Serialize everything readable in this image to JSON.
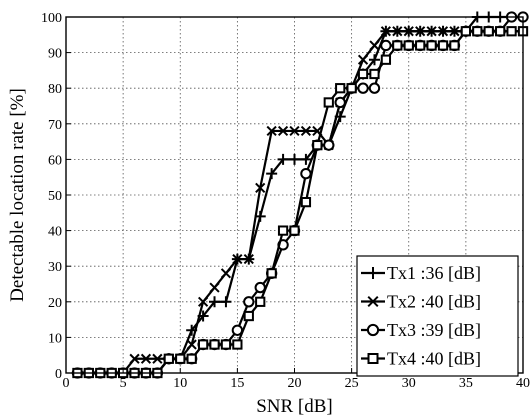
{
  "chart_data": {
    "type": "line",
    "title": "",
    "xlabel": "SNR [dB]",
    "ylabel": "Detectable location rate [%]",
    "xlim": [
      0,
      40
    ],
    "ylim": [
      0,
      100
    ],
    "xticks": [
      0,
      5,
      10,
      15,
      20,
      25,
      30,
      35,
      40
    ],
    "yticks": [
      0,
      10,
      20,
      30,
      40,
      50,
      60,
      70,
      80,
      90,
      100
    ],
    "grid": true,
    "legend_position": "bottom-right",
    "series": [
      {
        "name": "Tx1 :36 [dB]",
        "marker": "plus",
        "x": [
          1,
          2,
          3,
          4,
          5,
          6,
          7,
          8,
          9,
          10,
          11,
          12,
          13,
          14,
          15,
          16,
          17,
          18,
          19,
          20,
          21,
          22,
          23,
          24,
          25,
          26,
          27,
          28,
          29,
          30,
          31,
          32,
          33,
          34,
          35,
          36,
          37,
          38,
          39,
          40
        ],
        "y": [
          0,
          0,
          0,
          0,
          0,
          0,
          0,
          0,
          4,
          4,
          12,
          16,
          20,
          20,
          32,
          32,
          44,
          56,
          60,
          60,
          60,
          64,
          64,
          72,
          80,
          84,
          88,
          96,
          96,
          96,
          96,
          96,
          96,
          96,
          96,
          100,
          100,
          100,
          100,
          100
        ]
      },
      {
        "name": "Tx2 :40 [dB]",
        "marker": "x",
        "x": [
          1,
          2,
          3,
          4,
          5,
          6,
          7,
          8,
          9,
          10,
          11,
          12,
          13,
          14,
          15,
          16,
          17,
          18,
          19,
          20,
          21,
          22,
          23,
          24,
          25,
          26,
          27,
          28,
          29,
          30,
          31,
          32,
          33,
          34,
          35,
          36,
          37,
          38,
          39,
          40
        ],
        "y": [
          0,
          0,
          0,
          0,
          0,
          4,
          4,
          4,
          4,
          4,
          8,
          20,
          24,
          28,
          32,
          32,
          52,
          68,
          68,
          68,
          68,
          68,
          64,
          76,
          80,
          88,
          92,
          96,
          96,
          96,
          96,
          96,
          96,
          96,
          96,
          96,
          96,
          96,
          96,
          96
        ]
      },
      {
        "name": "Tx3 :39 [dB]",
        "marker": "circle",
        "x": [
          1,
          2,
          3,
          4,
          5,
          6,
          7,
          8,
          9,
          10,
          11,
          12,
          13,
          14,
          15,
          16,
          17,
          18,
          19,
          20,
          21,
          22,
          23,
          24,
          25,
          26,
          27,
          28,
          29,
          30,
          31,
          32,
          33,
          34,
          35,
          36,
          37,
          38,
          39,
          40
        ],
        "y": [
          0,
          0,
          0,
          0,
          0,
          0,
          0,
          0,
          4,
          4,
          4,
          8,
          8,
          8,
          12,
          20,
          24,
          28,
          36,
          40,
          56,
          64,
          64,
          76,
          80,
          80,
          80,
          92,
          92,
          92,
          92,
          92,
          92,
          92,
          96,
          96,
          96,
          96,
          100,
          100
        ]
      },
      {
        "name": "Tx4 :40 [dB]",
        "marker": "square",
        "x": [
          1,
          2,
          3,
          4,
          5,
          6,
          7,
          8,
          9,
          10,
          11,
          12,
          13,
          14,
          15,
          16,
          17,
          18,
          19,
          20,
          21,
          22,
          23,
          24,
          25,
          26,
          27,
          28,
          29,
          30,
          31,
          32,
          33,
          34,
          35,
          36,
          37,
          38,
          39,
          40
        ],
        "y": [
          0,
          0,
          0,
          0,
          0,
          0,
          0,
          0,
          4,
          4,
          4,
          8,
          8,
          8,
          8,
          16,
          20,
          28,
          40,
          40,
          48,
          64,
          76,
          80,
          80,
          84,
          84,
          88,
          92,
          92,
          92,
          92,
          92,
          92,
          96,
          96,
          96,
          96,
          96,
          96
        ]
      }
    ]
  }
}
